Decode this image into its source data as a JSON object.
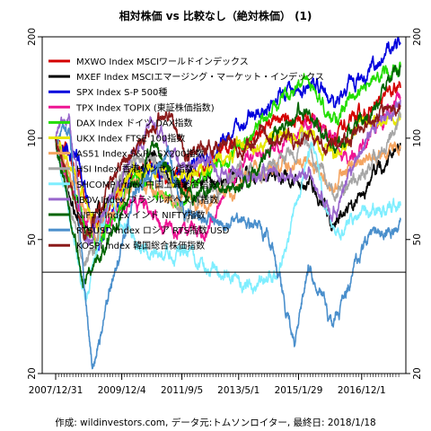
{
  "chart_data": {
    "type": "line",
    "title": "相対株価 vs 比較なし（絶対株価） (1)",
    "caption": "作成: wildinvestors.com, データ元:トムソンロイター, 最終日: 2018/1/18",
    "xlabel": "",
    "ylabel": "",
    "y_scale": "log",
    "ylim": [
      20,
      200
    ],
    "y_ticks": [
      20,
      50,
      100,
      200
    ],
    "xlim": [
      "2007-12-31",
      "2018-01-18"
    ],
    "x_ticks": [
      "2007-12-31",
      "2009-12-04",
      "2011-09-05",
      "2013-05-01",
      "2015-01-29",
      "2016-12-01"
    ],
    "x_tick_labels": [
      "2007/12/31",
      "2009/12/4",
      "2011/9/5",
      "2013/5/1",
      "2015/1/29",
      "2016/12/1"
    ],
    "reference_line": 40,
    "grid": false,
    "legend_position": "top-left",
    "series": [
      {
        "name": "MXWO Index MSCIワールドインデックス",
        "color": "#d40000",
        "x": [
          "2007-12-31",
          "2008-09-01",
          "2009-03-09",
          "2010-04-15",
          "2011-10-04",
          "2012-06-01",
          "2013-06-01",
          "2014-06-01",
          "2015-06-01",
          "2016-02-11",
          "2017-01-02",
          "2018-01-18"
        ],
        "values": [
          100,
          80,
          52,
          84,
          74,
          82,
          97,
          113,
          116,
          101,
          117,
          141
        ]
      },
      {
        "name": "MXEF Index MSCIエマージング・マーケット・インデックス",
        "color": "#000000",
        "x": [
          "2007-12-31",
          "2008-10-27",
          "2009-12-04",
          "2010-10-29",
          "2011-10-04",
          "2012-06-01",
          "2013-06-01",
          "2014-06-01",
          "2015-06-01",
          "2016-01-21",
          "2017-01-02",
          "2018-01-18"
        ],
        "values": [
          100,
          50,
          77,
          85,
          74,
          75,
          76,
          78,
          72,
          56,
          70,
          96
        ]
      },
      {
        "name": "SPX Index S-P 500種",
        "color": "#0000dd",
        "x": [
          "2007-12-31",
          "2008-09-01",
          "2009-03-09",
          "2010-04-15",
          "2011-10-04",
          "2012-06-01",
          "2013-06-01",
          "2014-06-01",
          "2015-06-01",
          "2016-02-11",
          "2017-01-02",
          "2018-01-18"
        ],
        "values": [
          100,
          86,
          46,
          81,
          75,
          90,
          112,
          133,
          144,
          129,
          153,
          190
        ]
      },
      {
        "name": "TPX Index TOPIX (東証株価指数)",
        "color": "#ee1493",
        "x": [
          "2007-12-31",
          "2008-10-27",
          "2009-03-09",
          "2010-04-15",
          "2011-03-15",
          "2012-06-04",
          "2013-05-22",
          "2014-06-01",
          "2015-08-10",
          "2016-06-24",
          "2017-06-01",
          "2018-01-18"
        ],
        "values": [
          100,
          55,
          53,
          67,
          55,
          53,
          87,
          93,
          112,
          83,
          110,
          133
        ]
      },
      {
        "name": "DAX Index ドイツ DAX指数",
        "color": "#22dd00",
        "x": [
          "2007-12-31",
          "2008-11-21",
          "2009-03-09",
          "2010-04-15",
          "2011-09-12",
          "2012-06-01",
          "2013-06-01",
          "2014-06-01",
          "2015-04-10",
          "2016-02-11",
          "2017-01-02",
          "2018-01-18"
        ],
        "values": [
          100,
          55,
          46,
          78,
          62,
          78,
          96,
          125,
          148,
          113,
          144,
          165
        ]
      },
      {
        "name": "UKX Index FTSE 100指数",
        "color": "#e6e600",
        "x": [
          "2007-12-31",
          "2008-10-27",
          "2009-03-09",
          "2010-04-15",
          "2011-10-04",
          "2012-06-01",
          "2013-06-01",
          "2014-06-01",
          "2015-06-01",
          "2016-02-11",
          "2017-01-02",
          "2018-01-18"
        ],
        "values": [
          100,
          66,
          55,
          82,
          75,
          81,
          95,
          101,
          102,
          87,
          109,
          118
        ]
      },
      {
        "name": "AS51 Index S&P/ASX200指数",
        "color": "#f4a460",
        "x": [
          "2007-12-31",
          "2008-11-21",
          "2009-03-09",
          "2010-04-15",
          "2011-10-04",
          "2012-06-01",
          "2013-06-01",
          "2014-06-01",
          "2015-06-01",
          "2016-02-11",
          "2017-01-02",
          "2018-01-18"
        ],
        "values": [
          100,
          60,
          52,
          75,
          65,
          62,
          75,
          82,
          85,
          72,
          85,
          93
        ]
      },
      {
        "name": "HSI Index 香港ハンセン指数",
        "color": "#a6a6a6",
        "x": [
          "2007-12-31",
          "2008-10-27",
          "2009-12-04",
          "2010-11-08",
          "2011-10-04",
          "2012-06-01",
          "2013-06-01",
          "2014-06-01",
          "2015-04-28",
          "2016-02-11",
          "2017-01-02",
          "2018-01-18"
        ],
        "values": [
          100,
          40,
          80,
          88,
          60,
          68,
          78,
          82,
          98,
          68,
          80,
          115
        ]
      },
      {
        "name": "SHCOMP Index 中国上海総合指数",
        "color": "#7feeff",
        "x": [
          "2007-12-31",
          "2008-11-04",
          "2009-08-04",
          "2010-07-02",
          "2012-01-06",
          "2013-06-25",
          "2014-07-01",
          "2015-06-12",
          "2016-01-28",
          "2017-01-02",
          "2018-01-18"
        ],
        "values": [
          100,
          33,
          65,
          47,
          44,
          36,
          40,
          96,
          52,
          58,
          63
        ]
      },
      {
        "name": "IBOV Index ブラジルボベスパ指数",
        "color": "#9966cc",
        "x": [
          "2007-12-31",
          "2008-05-20",
          "2008-10-27",
          "2010-11-04",
          "2011-10-04",
          "2012-06-01",
          "2013-06-01",
          "2014-06-01",
          "2015-06-01",
          "2016-01-26",
          "2017-01-02",
          "2018-01-18"
        ],
        "values": [
          100,
          115,
          48,
          113,
          82,
          85,
          78,
          78,
          80,
          60,
          96,
          130
        ]
      },
      {
        "name": "NIFTY Index インド NIFTY指数",
        "color": "#006400",
        "x": [
          "2007-12-31",
          "2008-10-27",
          "2009-03-09",
          "2010-11-04",
          "2011-12-20",
          "2012-06-01",
          "2013-08-28",
          "2014-06-01",
          "2015-03-03",
          "2016-02-26",
          "2017-01-02",
          "2018-01-18"
        ],
        "values": [
          100,
          37,
          42,
          93,
          67,
          72,
          75,
          105,
          121,
          93,
          113,
          165
        ]
      },
      {
        "name": "RTSUSD Index ロシア RTS指数 USD",
        "color": "#4a8fcc",
        "x": [
          "2007-12-31",
          "2008-05-19",
          "2009-01-23",
          "2010-04-15",
          "2011-04-08",
          "2011-10-04",
          "2012-06-01",
          "2013-06-01",
          "2014-03-03",
          "2014-12-16",
          "2015-05-15",
          "2016-01-21",
          "2017-01-02",
          "2018-01-18"
        ],
        "values": [
          100,
          106,
          21,
          70,
          90,
          59,
          58,
          56,
          52,
          25,
          42,
          27,
          48,
          57
        ]
      },
      {
        "name": "KOSPI Index 韓国総合株価指数",
        "color": "#8b1a1a",
        "x": [
          "2007-12-31",
          "2008-10-24",
          "2009-12-04",
          "2011-04-27",
          "2011-09-26",
          "2012-06-01",
          "2013-06-01",
          "2014-06-01",
          "2015-06-01",
          "2016-06-01",
          "2017-06-01",
          "2018-01-18"
        ],
        "values": [
          100,
          50,
          85,
          120,
          88,
          95,
          94,
          100,
          98,
          96,
          117,
          125
        ]
      }
    ]
  }
}
